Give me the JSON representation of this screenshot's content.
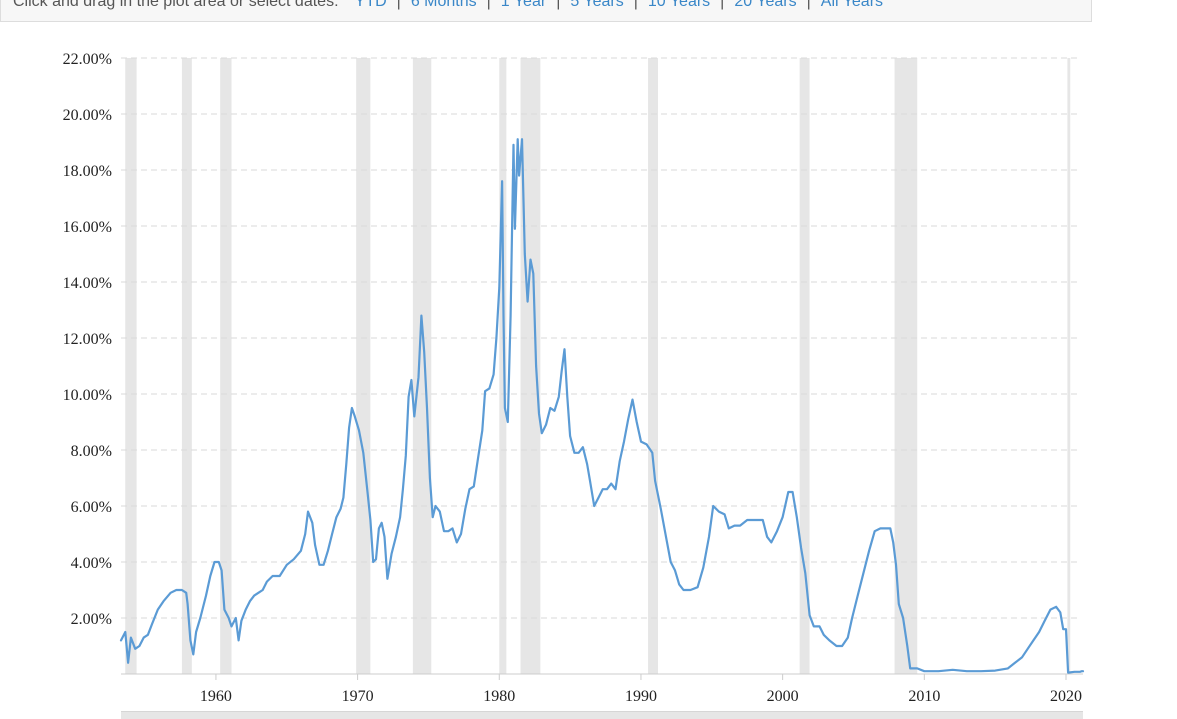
{
  "toolbar": {
    "prompt": "Click and drag in the plot area or select dates:",
    "ranges": [
      "YTD",
      "6 Months",
      "1 Year",
      "5 Years",
      "10 Years",
      "20 Years",
      "All Years"
    ]
  },
  "chart_data": {
    "type": "line",
    "title": "",
    "xlabel": "",
    "ylabel": "",
    "xlim": [
      1953.3,
      2021.2
    ],
    "ylim": [
      0,
      22
    ],
    "y_ticks": [
      "2.00%",
      "4.00%",
      "6.00%",
      "8.00%",
      "10.00%",
      "12.00%",
      "14.00%",
      "16.00%",
      "18.00%",
      "20.00%",
      "22.00%"
    ],
    "x_ticks": [
      "1960",
      "1970",
      "1980",
      "1990",
      "2000",
      "2010",
      "2020"
    ],
    "grid": true,
    "colors": {
      "line": "#5b9bd5",
      "recession": "#e6e6e6",
      "grid": "#d9d9d9"
    },
    "recessions": [
      [
        1953.6,
        1954.4
      ],
      [
        1957.6,
        1958.3
      ],
      [
        1960.3,
        1961.1
      ],
      [
        1969.9,
        1970.9
      ],
      [
        1973.9,
        1975.2
      ],
      [
        1980.0,
        1980.5
      ],
      [
        1981.5,
        1982.9
      ],
      [
        1990.5,
        1991.2
      ],
      [
        2001.2,
        2001.9
      ],
      [
        2007.9,
        2009.5
      ],
      [
        2020.1,
        2020.3
      ]
    ],
    "series": [
      {
        "values": [
          [
            1953.3,
            1.2
          ],
          [
            1953.6,
            1.5
          ],
          [
            1953.8,
            0.4
          ],
          [
            1954.0,
            1.3
          ],
          [
            1954.3,
            0.9
          ],
          [
            1954.6,
            1.0
          ],
          [
            1954.9,
            1.3
          ],
          [
            1955.2,
            1.4
          ],
          [
            1955.5,
            1.8
          ],
          [
            1955.9,
            2.3
          ],
          [
            1956.3,
            2.6
          ],
          [
            1956.8,
            2.9
          ],
          [
            1957.2,
            3.0
          ],
          [
            1957.6,
            3.0
          ],
          [
            1957.9,
            2.9
          ],
          [
            1958.0,
            2.5
          ],
          [
            1958.2,
            1.2
          ],
          [
            1958.4,
            0.7
          ],
          [
            1958.6,
            1.5
          ],
          [
            1958.9,
            2.0
          ],
          [
            1959.3,
            2.8
          ],
          [
            1959.6,
            3.5
          ],
          [
            1959.9,
            4.0
          ],
          [
            1960.2,
            4.0
          ],
          [
            1960.4,
            3.7
          ],
          [
            1960.6,
            2.3
          ],
          [
            1960.9,
            2.0
          ],
          [
            1961.1,
            1.7
          ],
          [
            1961.4,
            2.0
          ],
          [
            1961.6,
            1.2
          ],
          [
            1961.8,
            1.9
          ],
          [
            1962.1,
            2.3
          ],
          [
            1962.4,
            2.6
          ],
          [
            1962.7,
            2.8
          ],
          [
            1963.0,
            2.9
          ],
          [
            1963.3,
            3.0
          ],
          [
            1963.6,
            3.3
          ],
          [
            1964.0,
            3.5
          ],
          [
            1964.5,
            3.5
          ],
          [
            1965.0,
            3.9
          ],
          [
            1965.5,
            4.1
          ],
          [
            1966.0,
            4.4
          ],
          [
            1966.3,
            5.0
          ],
          [
            1966.5,
            5.8
          ],
          [
            1966.8,
            5.4
          ],
          [
            1967.0,
            4.6
          ],
          [
            1967.3,
            3.9
          ],
          [
            1967.6,
            3.9
          ],
          [
            1967.9,
            4.4
          ],
          [
            1968.2,
            5.0
          ],
          [
            1968.5,
            5.6
          ],
          [
            1968.8,
            5.9
          ],
          [
            1969.0,
            6.3
          ],
          [
            1969.2,
            7.5
          ],
          [
            1969.4,
            8.8
          ],
          [
            1969.6,
            9.5
          ],
          [
            1969.8,
            9.2
          ],
          [
            1970.1,
            8.7
          ],
          [
            1970.4,
            7.9
          ],
          [
            1970.7,
            6.5
          ],
          [
            1970.9,
            5.5
          ],
          [
            1971.1,
            4.0
          ],
          [
            1971.3,
            4.1
          ],
          [
            1971.5,
            5.2
          ],
          [
            1971.7,
            5.4
          ],
          [
            1971.9,
            4.9
          ],
          [
            1972.1,
            3.4
          ],
          [
            1972.4,
            4.3
          ],
          [
            1972.7,
            4.9
          ],
          [
            1973.0,
            5.6
          ],
          [
            1973.2,
            6.6
          ],
          [
            1973.4,
            7.8
          ],
          [
            1973.6,
            9.9
          ],
          [
            1973.8,
            10.5
          ],
          [
            1974.0,
            9.2
          ],
          [
            1974.3,
            10.6
          ],
          [
            1974.5,
            12.8
          ],
          [
            1974.7,
            11.5
          ],
          [
            1974.9,
            9.5
          ],
          [
            1975.1,
            7.0
          ],
          [
            1975.3,
            5.6
          ],
          [
            1975.5,
            6.0
          ],
          [
            1975.8,
            5.8
          ],
          [
            1976.1,
            5.1
          ],
          [
            1976.4,
            5.1
          ],
          [
            1976.7,
            5.2
          ],
          [
            1977.0,
            4.7
          ],
          [
            1977.3,
            5.0
          ],
          [
            1977.6,
            5.9
          ],
          [
            1977.9,
            6.6
          ],
          [
            1978.2,
            6.7
          ],
          [
            1978.5,
            7.7
          ],
          [
            1978.8,
            8.7
          ],
          [
            1979.0,
            10.1
          ],
          [
            1979.3,
            10.2
          ],
          [
            1979.6,
            10.7
          ],
          [
            1979.8,
            12.0
          ],
          [
            1980.0,
            13.8
          ],
          [
            1980.2,
            17.6
          ],
          [
            1980.3,
            12.8
          ],
          [
            1980.4,
            9.5
          ],
          [
            1980.6,
            9.0
          ],
          [
            1980.8,
            12.8
          ],
          [
            1981.0,
            18.9
          ],
          [
            1981.1,
            15.9
          ],
          [
            1981.3,
            19.1
          ],
          [
            1981.4,
            17.8
          ],
          [
            1981.6,
            19.1
          ],
          [
            1981.8,
            15.0
          ],
          [
            1982.0,
            13.3
          ],
          [
            1982.2,
            14.8
          ],
          [
            1982.4,
            14.3
          ],
          [
            1982.6,
            11.0
          ],
          [
            1982.8,
            9.3
          ],
          [
            1983.0,
            8.6
          ],
          [
            1983.3,
            8.9
          ],
          [
            1983.6,
            9.5
          ],
          [
            1983.9,
            9.4
          ],
          [
            1984.2,
            9.9
          ],
          [
            1984.4,
            10.8
          ],
          [
            1984.6,
            11.6
          ],
          [
            1984.8,
            9.9
          ],
          [
            1985.0,
            8.5
          ],
          [
            1985.3,
            7.9
          ],
          [
            1985.6,
            7.9
          ],
          [
            1985.9,
            8.1
          ],
          [
            1986.2,
            7.5
          ],
          [
            1986.4,
            6.9
          ],
          [
            1986.7,
            6.0
          ],
          [
            1987.0,
            6.3
          ],
          [
            1987.3,
            6.6
          ],
          [
            1987.6,
            6.6
          ],
          [
            1987.9,
            6.8
          ],
          [
            1988.2,
            6.6
          ],
          [
            1988.5,
            7.6
          ],
          [
            1988.8,
            8.3
          ],
          [
            1989.1,
            9.1
          ],
          [
            1989.4,
            9.8
          ],
          [
            1989.7,
            9.0
          ],
          [
            1990.0,
            8.3
          ],
          [
            1990.4,
            8.2
          ],
          [
            1990.8,
            7.9
          ],
          [
            1991.0,
            6.9
          ],
          [
            1991.4,
            5.9
          ],
          [
            1991.8,
            4.8
          ],
          [
            1992.1,
            4.0
          ],
          [
            1992.4,
            3.7
          ],
          [
            1992.7,
            3.2
          ],
          [
            1993.0,
            3.0
          ],
          [
            1993.5,
            3.0
          ],
          [
            1994.0,
            3.1
          ],
          [
            1994.4,
            3.8
          ],
          [
            1994.8,
            4.9
          ],
          [
            1995.1,
            6.0
          ],
          [
            1995.5,
            5.8
          ],
          [
            1995.9,
            5.7
          ],
          [
            1996.2,
            5.2
          ],
          [
            1996.6,
            5.3
          ],
          [
            1997.0,
            5.3
          ],
          [
            1997.5,
            5.5
          ],
          [
            1997.9,
            5.5
          ],
          [
            1998.3,
            5.5
          ],
          [
            1998.6,
            5.5
          ],
          [
            1998.9,
            4.9
          ],
          [
            1999.2,
            4.7
          ],
          [
            1999.6,
            5.1
          ],
          [
            2000.0,
            5.6
          ],
          [
            2000.4,
            6.5
          ],
          [
            2000.7,
            6.5
          ],
          [
            2001.0,
            5.6
          ],
          [
            2001.3,
            4.5
          ],
          [
            2001.6,
            3.6
          ],
          [
            2001.9,
            2.1
          ],
          [
            2002.2,
            1.7
          ],
          [
            2002.6,
            1.7
          ],
          [
            2002.9,
            1.4
          ],
          [
            2003.3,
            1.2
          ],
          [
            2003.8,
            1.0
          ],
          [
            2004.2,
            1.0
          ],
          [
            2004.6,
            1.3
          ],
          [
            2004.9,
            2.0
          ],
          [
            2005.3,
            2.8
          ],
          [
            2005.7,
            3.6
          ],
          [
            2006.1,
            4.4
          ],
          [
            2006.5,
            5.1
          ],
          [
            2006.9,
            5.2
          ],
          [
            2007.3,
            5.2
          ],
          [
            2007.6,
            5.2
          ],
          [
            2007.8,
            4.7
          ],
          [
            2008.0,
            3.9
          ],
          [
            2008.2,
            2.5
          ],
          [
            2008.5,
            2.0
          ],
          [
            2008.8,
            1.0
          ],
          [
            2009.0,
            0.2
          ],
          [
            2009.5,
            0.2
          ],
          [
            2010.0,
            0.1
          ],
          [
            2011.0,
            0.1
          ],
          [
            2012.0,
            0.15
          ],
          [
            2013.0,
            0.1
          ],
          [
            2014.0,
            0.1
          ],
          [
            2015.0,
            0.12
          ],
          [
            2015.9,
            0.2
          ],
          [
            2016.4,
            0.4
          ],
          [
            2016.9,
            0.6
          ],
          [
            2017.3,
            0.9
          ],
          [
            2017.7,
            1.2
          ],
          [
            2018.1,
            1.5
          ],
          [
            2018.5,
            1.9
          ],
          [
            2018.9,
            2.3
          ],
          [
            2019.3,
            2.4
          ],
          [
            2019.6,
            2.2
          ],
          [
            2019.8,
            1.6
          ],
          [
            2020.0,
            1.6
          ],
          [
            2020.15,
            0.05
          ],
          [
            2020.6,
            0.08
          ],
          [
            2021.0,
            0.08
          ],
          [
            2021.1,
            0.1
          ],
          [
            2021.2,
            0.1
          ]
        ]
      }
    ]
  }
}
